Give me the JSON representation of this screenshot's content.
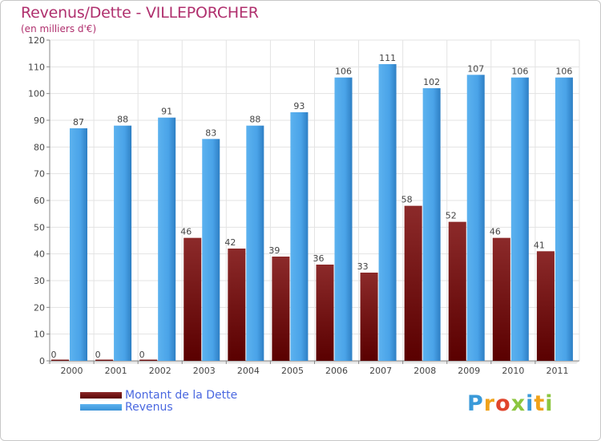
{
  "title": "Revenus/Dette - VILLEPORCHER",
  "subtitle": "(en milliers d'€)",
  "chart_data": {
    "type": "bar",
    "title": "Revenus/Dette - VILLEPORCHER",
    "ylabel": "(en milliers d'€)",
    "xlabel": "",
    "ylim": [
      0,
      120
    ],
    "yticks": [
      0,
      10,
      20,
      30,
      40,
      50,
      60,
      70,
      80,
      90,
      100,
      110,
      120
    ],
    "grid": true,
    "legend_position": "bottom-left",
    "categories": [
      "2000",
      "2001",
      "2002",
      "2003",
      "2004",
      "2005",
      "2006",
      "2007",
      "2008",
      "2009",
      "2010",
      "2011"
    ],
    "series": [
      {
        "name": "Montant de la Dette",
        "color": "#7a1414",
        "values": [
          0,
          0,
          0,
          46,
          42,
          39,
          36,
          33,
          58,
          52,
          46,
          41
        ]
      },
      {
        "name": "Revenus",
        "color": "#4aa3e8",
        "values": [
          87,
          88,
          91,
          83,
          88,
          93,
          106,
          111,
          102,
          107,
          106,
          106
        ]
      }
    ]
  },
  "legend": {
    "items": [
      {
        "label": "Montant de la Dette",
        "color": "#6b0f0f"
      },
      {
        "label": "Revenus",
        "color": "#4aa3e8"
      }
    ]
  },
  "logo": {
    "letters": [
      "P",
      "r",
      "o",
      "x",
      "i",
      "t",
      "i"
    ],
    "colors": [
      "#3a9ad9",
      "#f0a21a",
      "#e0452c",
      "#8cc63f",
      "#3a9ad9",
      "#f0a21a",
      "#8cc63f"
    ]
  }
}
